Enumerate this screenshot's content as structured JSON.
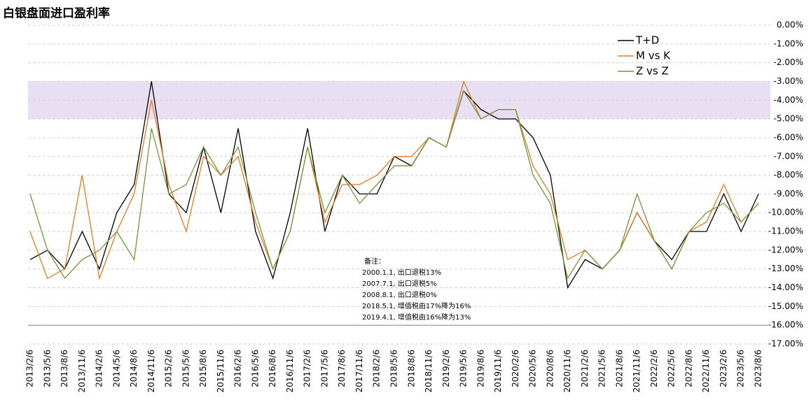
{
  "chart_data": {
    "type": "line",
    "title": "白银盘面进口盈利率",
    "categories": [
      "2013/2/6",
      "2013/5/6",
      "2013/8/6",
      "2013/11/6",
      "2014/2/6",
      "2014/5/6",
      "2014/8/6",
      "2014/11/6",
      "2015/2/6",
      "2015/5/6",
      "2015/8/6",
      "2015/11/6",
      "2016/2/6",
      "2016/5/6",
      "2016/8/6",
      "2016/11/6",
      "2017/2/6",
      "2017/5/6",
      "2017/8/6",
      "2017/11/6",
      "2018/2/6",
      "2018/5/6",
      "2018/8/6",
      "2018/11/6",
      "2019/2/6",
      "2019/5/6",
      "2019/8/6",
      "2019/11/6",
      "2020/2/6",
      "2020/5/6",
      "2020/8/6",
      "2020/11/6",
      "2021/2/6",
      "2021/5/6",
      "2021/8/6",
      "2021/11/6",
      "2022/2/6",
      "2022/5/6",
      "2022/8/6",
      "2022/11/6",
      "2023/2/6",
      "2023/5/6",
      "2023/8/6"
    ],
    "series": [
      {
        "name": "T+D",
        "color": "#000000",
        "values": [
          -12.5,
          -12.0,
          -13.0,
          -11.0,
          -13.0,
          -10.0,
          -8.5,
          -3.0,
          -9.0,
          -10.0,
          -6.5,
          -10.0,
          -5.5,
          -11.0,
          -13.5,
          -10.0,
          -5.5,
          -11.0,
          -8.0,
          -9.0,
          -9.0,
          -7.0,
          -7.5,
          -6.0,
          -6.5,
          -3.5,
          -4.5,
          -5.0,
          -5.0,
          -6.0,
          -8.0,
          -14.0,
          -12.5,
          -13.0,
          -12.0,
          -10.0,
          -11.5,
          -12.5,
          -11.0,
          -11.0,
          -9.0,
          -11.0,
          -9.0
        ]
      },
      {
        "name": "M vs K",
        "color": "#e07b20",
        "values": [
          -11.0,
          -13.5,
          -13.0,
          -8.0,
          -13.5,
          -11.0,
          -9.0,
          -4.0,
          -8.5,
          -11.0,
          -7.0,
          -8.0,
          -7.0,
          -10.5,
          -13.0,
          -11.0,
          -6.5,
          -10.5,
          -8.5,
          -8.5,
          -8.0,
          -7.0,
          -7.0,
          -6.0,
          -6.5,
          -3.0,
          -5.0,
          -4.5,
          -4.5,
          -7.5,
          -9.0,
          -12.5,
          -12.0,
          -13.0,
          -12.0,
          -10.0,
          -11.5,
          -13.0,
          -11.0,
          -10.5,
          -8.5,
          -10.5,
          -9.5
        ]
      },
      {
        "name": "Z vs Z",
        "color": "#77933c",
        "values": [
          -9.0,
          -12.0,
          -13.5,
          -12.5,
          -12.0,
          -11.0,
          -12.5,
          -5.5,
          -9.0,
          -8.5,
          -6.5,
          -8.0,
          -6.5,
          -10.0,
          -13.0,
          -11.0,
          -6.5,
          -10.0,
          -8.0,
          -9.5,
          -8.5,
          -7.5,
          -7.5,
          -6.0,
          -6.5,
          -3.5,
          -5.0,
          -4.5,
          -4.5,
          -8.0,
          -9.5,
          -13.5,
          -12.0,
          -13.0,
          -12.0,
          -9.0,
          -11.5,
          -13.0,
          -11.0,
          -10.0,
          -9.5,
          -10.5,
          -9.5
        ]
      }
    ],
    "ylim": [
      -17,
      0
    ],
    "yticks": [
      {
        "value": 0,
        "label": "0.00%"
      },
      {
        "value": -1,
        "label": "-1.00%"
      },
      {
        "value": -2,
        "label": "-2.00%"
      },
      {
        "value": -3,
        "label": "-3.00%"
      },
      {
        "value": -4,
        "label": "-4.00%"
      },
      {
        "value": -5,
        "label": "-5.00%"
      },
      {
        "value": -6,
        "label": "-6.00%"
      },
      {
        "value": -7,
        "label": "-7.00%"
      },
      {
        "value": -8,
        "label": "-8.00%"
      },
      {
        "value": -9,
        "label": "-9.00%"
      },
      {
        "value": -10,
        "label": "-10.00%"
      },
      {
        "value": -11,
        "label": "-11.00%"
      },
      {
        "value": -12,
        "label": "-12.00%"
      },
      {
        "value": -13,
        "label": "-13.00%"
      },
      {
        "value": -14,
        "label": "-14.00%"
      },
      {
        "value": -15,
        "label": "-15.00%"
      },
      {
        "value": -16,
        "label": "-16.00%"
      },
      {
        "value": -17,
        "label": "-17.00%"
      }
    ],
    "grid": true,
    "highlight_band": {
      "from": -3,
      "to": -5,
      "color": "#e8dff2"
    },
    "notes": {
      "title": "备注：",
      "lines": [
        "2000.1.1, 出口退税13%",
        "2007.7.1, 出口退税5%",
        "2008.8.1, 出口退税0%",
        "2018.5.1, 增值税由17%降为16%",
        "2019.4.1, 增值税由16%降为13%"
      ]
    }
  }
}
